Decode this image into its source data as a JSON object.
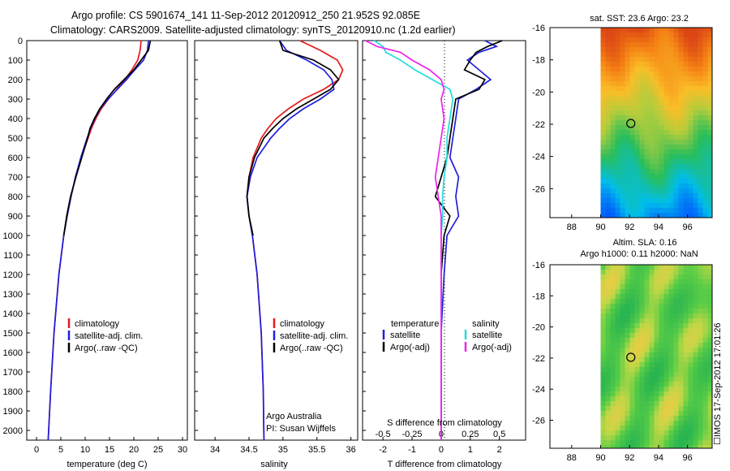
{
  "header": {
    "line1": "Argo profile: CS 5901674_141 11-Sep-2012 20120912_250 21.952S 92.085E",
    "line2": "Climatology: CARS2009. Satellite-adjusted climatology: synTS_20120910.nc (1.2d earlier)"
  },
  "stamp": "IMOS 17-Sep-2012 17:01:26",
  "chart_data": [
    {
      "id": "temperature",
      "type": "line",
      "xlabel": "temperature (deg C)",
      "xlim": [
        -2,
        31
      ],
      "xticks": [
        "0",
        "5",
        "10",
        "15",
        "20",
        "25",
        "30"
      ],
      "ylim": [
        2050,
        0
      ],
      "yticks": [
        "0",
        "100",
        "200",
        "300",
        "400",
        "500",
        "600",
        "700",
        "800",
        "900",
        "1000",
        "1100",
        "1200",
        "1300",
        "1400",
        "1500",
        "1600",
        "1700",
        "1800",
        "1900",
        "2000"
      ],
      "legend": [
        "climatology",
        "satellite-adj. clim.",
        "Argo(..raw -QC)"
      ],
      "series": [
        {
          "name": "climatology",
          "color": "#e41a1c",
          "depth": [
            0,
            50,
            100,
            150,
            200,
            250,
            300,
            350,
            400,
            450,
            500,
            600,
            700,
            800,
            900,
            1000,
            1200,
            1500,
            1800,
            2050
          ],
          "values": [
            21.5,
            21.3,
            20.8,
            19.6,
            18.2,
            16.5,
            14.8,
            13.3,
            12.2,
            11.3,
            10.6,
            9.2,
            8.0,
            7.1,
            6.3,
            5.6,
            4.6,
            3.6,
            2.9,
            2.4
          ]
        },
        {
          "name": "satellite",
          "color": "#1f1fdd",
          "depth": [
            0,
            50,
            100,
            150,
            200,
            250,
            300,
            350,
            400,
            450,
            500,
            600,
            700,
            800,
            900,
            1000,
            1200,
            1500,
            1800,
            2050
          ],
          "values": [
            23.0,
            22.8,
            22.0,
            20.2,
            18.5,
            16.6,
            14.7,
            13.1,
            12.0,
            11.1,
            10.4,
            9.1,
            8.0,
            7.1,
            6.3,
            5.6,
            4.6,
            3.6,
            2.9,
            2.4
          ]
        },
        {
          "name": "Argo",
          "color": "#000000",
          "depth": [
            0,
            50,
            100,
            150,
            200,
            250,
            300,
            350,
            400,
            450,
            500,
            600,
            700,
            800,
            900,
            1000
          ],
          "values": [
            23.4,
            23.0,
            21.5,
            20.0,
            18.0,
            16.0,
            14.4,
            13.0,
            11.9,
            11.0,
            10.5,
            9.3,
            8.1,
            7.0,
            6.2,
            5.6
          ]
        }
      ]
    },
    {
      "id": "salinity",
      "type": "line",
      "xlabel": "salinity",
      "xlim": [
        33.7,
        36.1
      ],
      "xticks": [
        "34",
        "34.5",
        "35",
        "35.5",
        "36"
      ],
      "ylim": [
        2050,
        0
      ],
      "legend": [
        "climatology",
        "satellite-adj. clim.",
        "Argo(..raw -QC)"
      ],
      "credit": [
        "Argo Australia",
        "PI: Susan Wijffels"
      ],
      "series": [
        {
          "name": "climatology",
          "color": "#e41a1c",
          "depth": [
            0,
            50,
            100,
            150,
            200,
            250,
            300,
            350,
            400,
            450,
            500,
            600,
            700,
            800,
            900,
            1000,
            1200,
            1500,
            1800,
            2050
          ],
          "values": [
            35.25,
            35.55,
            35.8,
            35.88,
            35.82,
            35.6,
            35.3,
            35.08,
            34.9,
            34.78,
            34.68,
            34.56,
            34.5,
            34.47,
            34.5,
            34.55,
            34.62,
            34.68,
            34.71,
            34.72
          ]
        },
        {
          "name": "satellite",
          "color": "#1f1fdd",
          "depth": [
            0,
            50,
            100,
            150,
            200,
            250,
            300,
            350,
            400,
            450,
            500,
            600,
            700,
            800,
            900,
            1000,
            1200,
            1500,
            1800,
            2050
          ],
          "values": [
            34.95,
            35.05,
            35.35,
            35.6,
            35.72,
            35.75,
            35.55,
            35.3,
            35.1,
            34.95,
            34.82,
            34.62,
            34.52,
            34.47,
            34.5,
            34.55,
            34.62,
            34.68,
            34.71,
            34.72
          ]
        },
        {
          "name": "Argo",
          "color": "#000000",
          "depth": [
            0,
            50,
            100,
            150,
            200,
            250,
            300,
            350,
            400,
            450,
            500,
            600,
            700,
            800,
            900,
            1000
          ],
          "values": [
            34.95,
            35.0,
            35.45,
            35.7,
            35.82,
            35.7,
            35.45,
            35.2,
            35.0,
            34.85,
            34.72,
            34.58,
            34.5,
            34.47,
            34.5,
            34.56
          ]
        }
      ]
    },
    {
      "id": "difference",
      "type": "line",
      "xlabel": "T difference from climatology",
      "xlabel_top": "S difference from climatology",
      "xlim": [
        -2.7,
        2.9
      ],
      "xticks": [
        "-2",
        "-1",
        "0",
        "1",
        "2"
      ],
      "sticks": [
        "-0.5",
        "-0.25",
        "0",
        "0.25",
        "0.5"
      ],
      "ylim": [
        2050,
        0
      ],
      "legend": {
        "temperature": "temperature",
        "salinity": "salinity",
        "t_sat": "satellite",
        "t_argo": "Argo(-adj)",
        "s_sat": "satellite",
        "s_argo": "Argo(-adj)"
      },
      "series": [
        {
          "name": "T satellite",
          "color": "#1f1fdd",
          "depth": [
            0,
            30,
            60,
            100,
            150,
            200,
            250,
            300,
            400,
            500,
            600,
            700,
            800,
            900,
            1000,
            1200,
            1500,
            2050
          ],
          "values": [
            1.5,
            1.9,
            1.3,
            0.9,
            1.3,
            1.7,
            1.2,
            0.6,
            0.5,
            0.4,
            0.3,
            0.6,
            0.5,
            0.6,
            0.2,
            0.1,
            0.0,
            0.0
          ]
        },
        {
          "name": "T Argo",
          "color": "#000000",
          "depth": [
            0,
            30,
            60,
            100,
            150,
            200,
            250,
            300,
            400,
            500,
            600,
            700,
            800,
            900,
            1000,
            1200,
            1500,
            2050
          ],
          "values": [
            2.1,
            1.6,
            1.2,
            1.0,
            0.8,
            1.5,
            1.3,
            0.5,
            0.4,
            0.3,
            0.2,
            0.0,
            -0.2,
            0.3,
            0.1,
            0.0,
            0.0,
            0.0
          ]
        },
        {
          "name": "S satellite",
          "color": "#22dddd",
          "depth": [
            0,
            30,
            60,
            100,
            150,
            200,
            250,
            300,
            400,
            500,
            600,
            700,
            800,
            900,
            1000,
            1200,
            1500,
            2050
          ],
          "values": [
            -2.3,
            -2.0,
            -1.9,
            -1.4,
            -0.9,
            -0.3,
            0.3,
            0.4,
            0.3,
            0.2,
            0.2,
            0.1,
            0.05,
            0.05,
            0.0,
            0.0,
            0.0,
            0.0
          ]
        },
        {
          "name": "S Argo",
          "color": "#ee22ee",
          "depth": [
            0,
            30,
            60,
            100,
            150,
            200,
            250,
            300,
            400,
            500,
            600,
            700,
            800,
            900,
            1000,
            1200,
            1500,
            2050
          ],
          "values": [
            -2.6,
            -2.2,
            -1.4,
            -1.0,
            -0.4,
            0.0,
            0.1,
            0.0,
            0.1,
            0.0,
            -0.1,
            -0.2,
            -0.1,
            0.0,
            0.0,
            0.0,
            0.0,
            0.0
          ]
        }
      ]
    },
    {
      "id": "sst_map",
      "type": "heatmap",
      "title": "sat. SST: 23.6  Argo: 23.2",
      "xlim": [
        86.5,
        97.7
      ],
      "ylim": [
        -27.8,
        -16
      ],
      "xticks": [
        "88",
        "90",
        "92",
        "94",
        "96"
      ],
      "yticks": [
        "-16",
        "-18",
        "-20",
        "-22",
        "-24",
        "-26"
      ],
      "profile": [
        92.085,
        -21.952
      ]
    },
    {
      "id": "sla_map",
      "type": "heatmap",
      "title": "Altim. SLA: 0.16",
      "subtitle": "Argo h1000: 0.11  h2000: NaN",
      "xlim": [
        86.5,
        97.7
      ],
      "ylim": [
        -27.8,
        -16
      ],
      "xticks": [
        "88",
        "90",
        "92",
        "94",
        "96"
      ],
      "yticks": [
        "-16",
        "-18",
        "-20",
        "-22",
        "-24",
        "-26"
      ],
      "profile": [
        92.085,
        -21.952
      ]
    }
  ]
}
